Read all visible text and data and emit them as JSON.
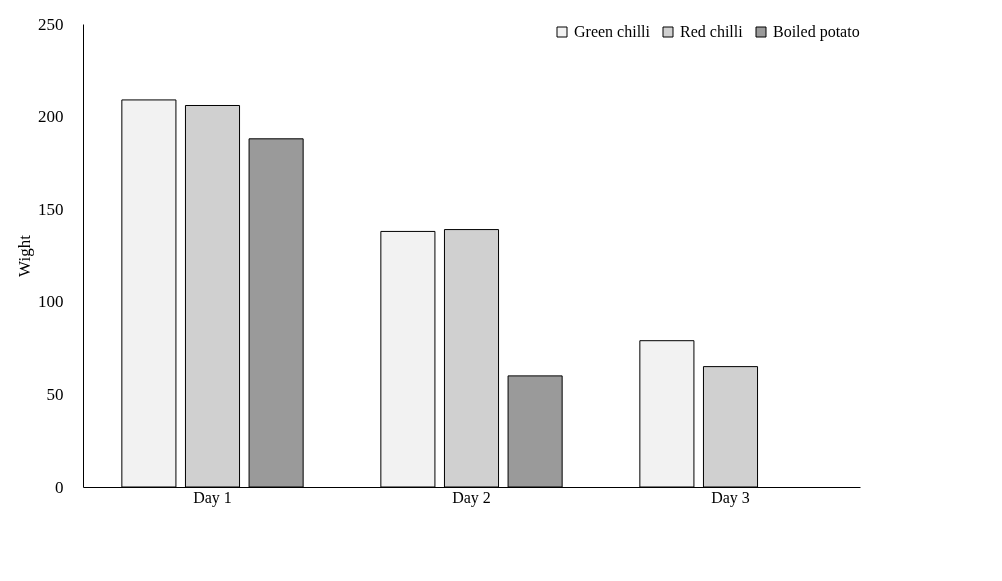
{
  "chart_data": {
    "type": "bar",
    "ylabel": "Wight",
    "categories": [
      "Day 1",
      "Day 2",
      "Day 3"
    ],
    "series": [
      {
        "name": "Green chilli",
        "color": "#f2f2f2",
        "values": [
          209,
          138,
          79
        ]
      },
      {
        "name": "Red chilli",
        "color": "#d0d0d0",
        "values": [
          206,
          139,
          65
        ]
      },
      {
        "name": "Boiled potato",
        "color": "#9a9a9a",
        "values": [
          188,
          60,
          null
        ]
      }
    ],
    "ylim": [
      0,
      250
    ],
    "yticks": [
      0,
      50,
      100,
      150,
      200,
      250
    ],
    "grid": false,
    "legend": "top right"
  }
}
